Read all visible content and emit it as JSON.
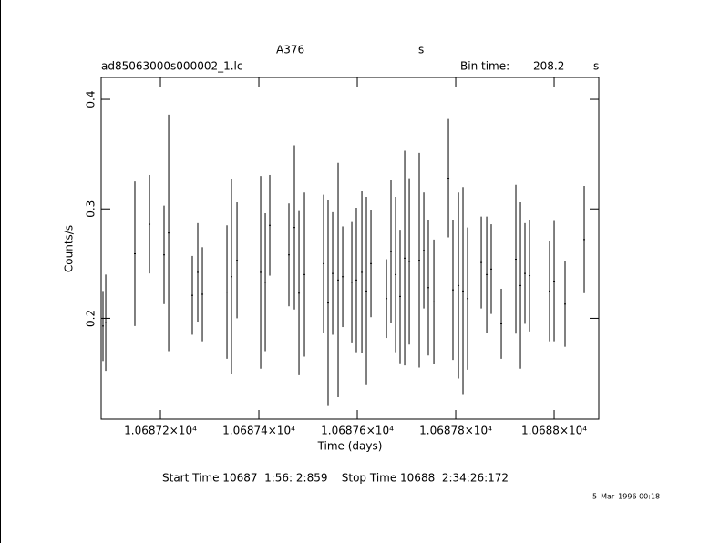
{
  "chart_data": {
    "type": "errorbar",
    "title": "A376",
    "title_suffix": "s",
    "file_name": "ad85063000s000002_1.lc",
    "bin_label": "Bin time:",
    "bin_time": 208.2,
    "bin_unit": "s",
    "x_label": "Time (days)",
    "y_label": "Counts/s",
    "time_range": "Start Time 10687  1:56: 2:859    Stop Time 10688  2:34:26:172",
    "date_stamp": "5–Mar–1996 00:18",
    "color": "#000000",
    "xlim": [
      10687.0796,
      10688.0907
    ],
    "ylim": [
      0.108,
      0.42
    ],
    "xticks": [
      {
        "value": 10687.2,
        "label": "1.06872×10⁴"
      },
      {
        "value": 10687.4,
        "label": "1.06874×10⁴"
      },
      {
        "value": 10687.6,
        "label": "1.06876×10⁴"
      },
      {
        "value": 10687.8,
        "label": "1.06878×10⁴"
      },
      {
        "value": 10688.0,
        "label": "1.0688×10⁴"
      }
    ],
    "yticks": [
      0.2,
      0.3,
      0.4
    ],
    "x": [
      10687.0833,
      10687.0889,
      10687.1481,
      10687.1778,
      10687.2074,
      10687.2167,
      10687.2648,
      10687.2759,
      10687.2852,
      10687.3352,
      10687.3444,
      10687.3556,
      10687.4037,
      10687.413,
      10687.4222,
      10687.4611,
      10687.4722,
      10687.4815,
      10687.4926,
      10687.5315,
      10687.5407,
      10687.55,
      10687.5611,
      10687.5704,
      10687.5889,
      10687.5981,
      10687.6093,
      10687.6185,
      10687.6278,
      10687.6593,
      10687.6685,
      10687.6778,
      10687.687,
      10687.6963,
      10687.7056,
      10687.7259,
      10687.7352,
      10687.7444,
      10687.7556,
      10687.7852,
      10687.7944,
      10687.8056,
      10687.8148,
      10687.8241,
      10687.8519,
      10687.863,
      10687.8722,
      10687.8926,
      10687.9222,
      10687.9315,
      10687.9407,
      10687.95,
      10687.9907,
      10688.0,
      10688.0222,
      10688.0611
    ],
    "values": [
      0.193,
      0.196,
      0.259,
      0.286,
      0.258,
      0.278,
      0.221,
      0.242,
      0.222,
      0.224,
      0.238,
      0.253,
      0.242,
      0.233,
      0.285,
      0.258,
      0.283,
      0.223,
      0.24,
      0.25,
      0.214,
      0.241,
      0.235,
      0.238,
      0.233,
      0.235,
      0.242,
      0.225,
      0.25,
      0.218,
      0.261,
      0.24,
      0.22,
      0.255,
      0.252,
      0.253,
      0.262,
      0.228,
      0.215,
      0.328,
      0.226,
      0.23,
      0.225,
      0.218,
      0.251,
      0.24,
      0.245,
      0.195,
      0.254,
      0.23,
      0.241,
      0.239,
      0.225,
      0.234,
      0.213,
      0.272
    ],
    "errors": [
      0.032,
      0.044,
      0.066,
      0.045,
      0.045,
      0.108,
      0.036,
      0.045,
      0.043,
      0.061,
      0.089,
      0.053,
      0.088,
      0.063,
      0.046,
      0.047,
      0.075,
      0.075,
      0.075,
      0.063,
      0.094,
      0.056,
      0.107,
      0.046,
      0.055,
      0.066,
      0.074,
      0.086,
      0.049,
      0.036,
      0.065,
      0.071,
      0.061,
      0.098,
      0.076,
      0.098,
      0.053,
      0.062,
      0.057,
      0.054,
      0.064,
      0.085,
      0.095,
      0.065,
      0.042,
      0.053,
      0.041,
      0.032,
      0.068,
      0.076,
      0.046,
      0.051,
      0.046,
      0.055,
      0.039,
      0.049
    ]
  }
}
